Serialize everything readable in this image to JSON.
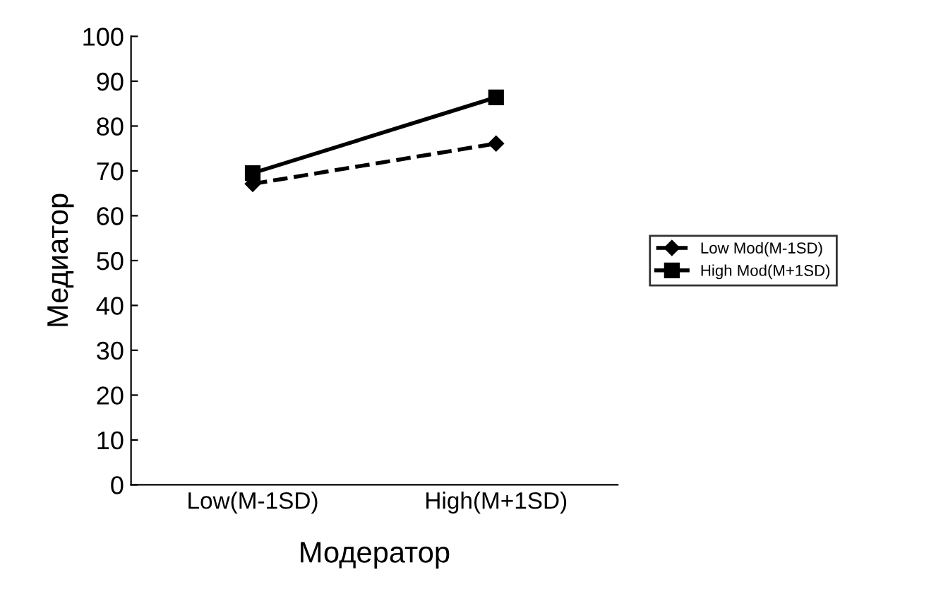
{
  "chart_data": {
    "type": "line",
    "xlabel": "Модератор",
    "ylabel": "Медиатор",
    "categories": [
      "Low(M-1SD)",
      "High(M+1SD)"
    ],
    "series": [
      {
        "name": "Low Mod(M-1SD)",
        "color": "#000000",
        "values": [
          67.1,
          76.1
        ],
        "marker": "diamond",
        "line_style": "dashed"
      },
      {
        "name": "High Mod(M+1SD)",
        "color": "#000000",
        "values": [
          69.5,
          86.4
        ],
        "marker": "square",
        "line_style": "solid"
      }
    ],
    "ylim": [
      0,
      100
    ],
    "yticks": [
      0,
      10,
      20,
      30,
      40,
      50,
      60,
      70,
      80,
      90,
      100
    ],
    "grid": false,
    "legend": "right"
  }
}
